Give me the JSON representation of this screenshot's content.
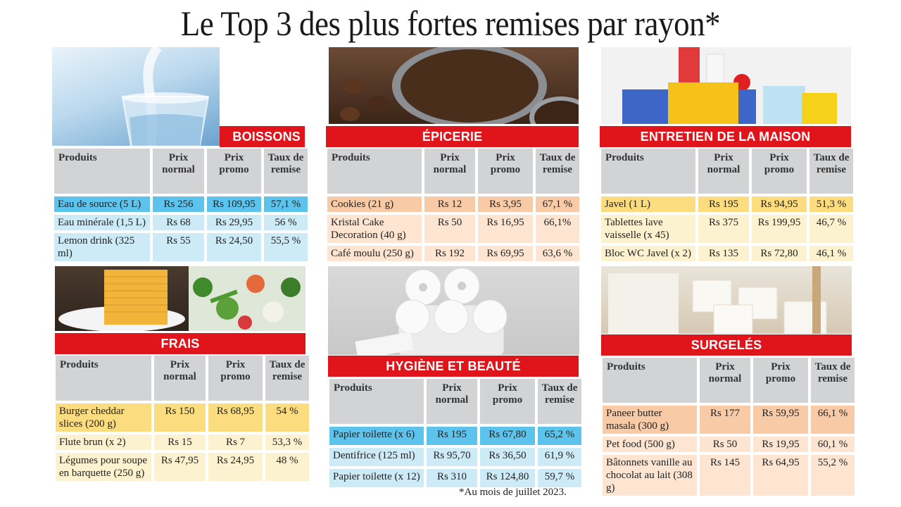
{
  "title": "Le Top 3 des plus fortes remises par rayon*",
  "footnote": "*Au mois de juillet 2023.",
  "headers": {
    "produits": "Produits",
    "prix_normal": "Prix normal",
    "prix_promo": "Prix promo",
    "taux": "Taux de remise"
  },
  "colors": {
    "banner_red": "#e0151b",
    "header_grey": "#d2d3d5",
    "blue_dark": "#5cc3ec",
    "blue_light": "#cdeaf7",
    "orange_dark": "#f8caa5",
    "orange_light": "#fde5d2",
    "yellow_dark": "#fbdc7e",
    "yellow_light": "#fdf2cf"
  },
  "sections": {
    "boissons": {
      "title": "BOISSONS",
      "rows": [
        {
          "produit": "Eau de source (5 L)",
          "normal": "Rs 256",
          "promo": "Rs 109,95",
          "taux": "57,1 %"
        },
        {
          "produit": "Eau minérale (1,5 L)",
          "normal": "Rs 68",
          "promo": "Rs 29,95",
          "taux": "56 %"
        },
        {
          "produit": "Lemon drink (325 ml)",
          "normal": "Rs 55",
          "promo": "Rs 24,50",
          "taux": "55,5 %"
        }
      ]
    },
    "epicerie": {
      "title": "ÉPICERIE",
      "rows": [
        {
          "produit": "Cookies (21 g)",
          "normal": "Rs 12",
          "promo": "Rs 3,95",
          "taux": "67,1 %"
        },
        {
          "produit": "Kristal Cake Decoration (40 g)",
          "normal": "Rs 50",
          "promo": "Rs 16,95",
          "taux": "66,1%"
        },
        {
          "produit": "Café moulu (250 g)",
          "normal": "Rs 192",
          "promo": "Rs 69,95",
          "taux": "63,6 %"
        }
      ]
    },
    "entretien": {
      "title": "ENTRETIEN DE LA MAISON",
      "rows": [
        {
          "produit": "Javel (1 L)",
          "normal": "Rs 195",
          "promo": "Rs 94,95",
          "taux": "51,3 %"
        },
        {
          "produit": "Tablettes lave vaisselle (x 45)",
          "normal": "Rs 375",
          "promo": "Rs 199,95",
          "taux": "46,7 %"
        },
        {
          "produit": "Bloc WC Javel (x 2)",
          "normal": "Rs 135",
          "promo": "Rs 72,80",
          "taux": "46,1 %"
        }
      ]
    },
    "frais": {
      "title": "FRAIS",
      "rows": [
        {
          "produit": "Burger cheddar slices (200 g)",
          "normal": "Rs 150",
          "promo": "Rs 68,95",
          "taux": "54 %"
        },
        {
          "produit": "Flute brun (x 2)",
          "normal": "Rs 15",
          "promo": "Rs 7",
          "taux": "53,3 %"
        },
        {
          "produit": "Légumes pour soupe en barquette (250 g)",
          "normal": "Rs 47,95",
          "promo": "Rs 24,95",
          "taux": "48 %"
        }
      ]
    },
    "hygiene": {
      "title": "HYGIÈNE ET BEAUTÉ",
      "rows": [
        {
          "produit": "Papier toilette (x 6)",
          "normal": "Rs 195",
          "promo": "Rs 67,80",
          "taux": "65,2 %"
        },
        {
          "produit": "Dentifrice (125 ml)",
          "normal": "Rs 95,70",
          "promo": "Rs 36,50",
          "taux": "61,9 %"
        },
        {
          "produit": "Papier toilette (x 12)",
          "normal": "Rs 310",
          "promo": "Rs 124,80",
          "taux": "59,7 %"
        }
      ]
    },
    "surgeles": {
      "title": "SURGELÉS",
      "rows": [
        {
          "produit": "Paneer butter masala (300 g)",
          "normal": "Rs 177",
          "promo": "Rs 59,95",
          "taux": "66,1 %"
        },
        {
          "produit": "Pet food (500 g)",
          "normal": "Rs 50",
          "promo": "Rs 19,95",
          "taux": "60,1 %"
        },
        {
          "produit": "Bâtonnets vanille au chocolat au lait (308 g)",
          "normal": "Rs 145",
          "promo": "Rs 64,95",
          "taux": "55,2 %"
        }
      ]
    }
  }
}
